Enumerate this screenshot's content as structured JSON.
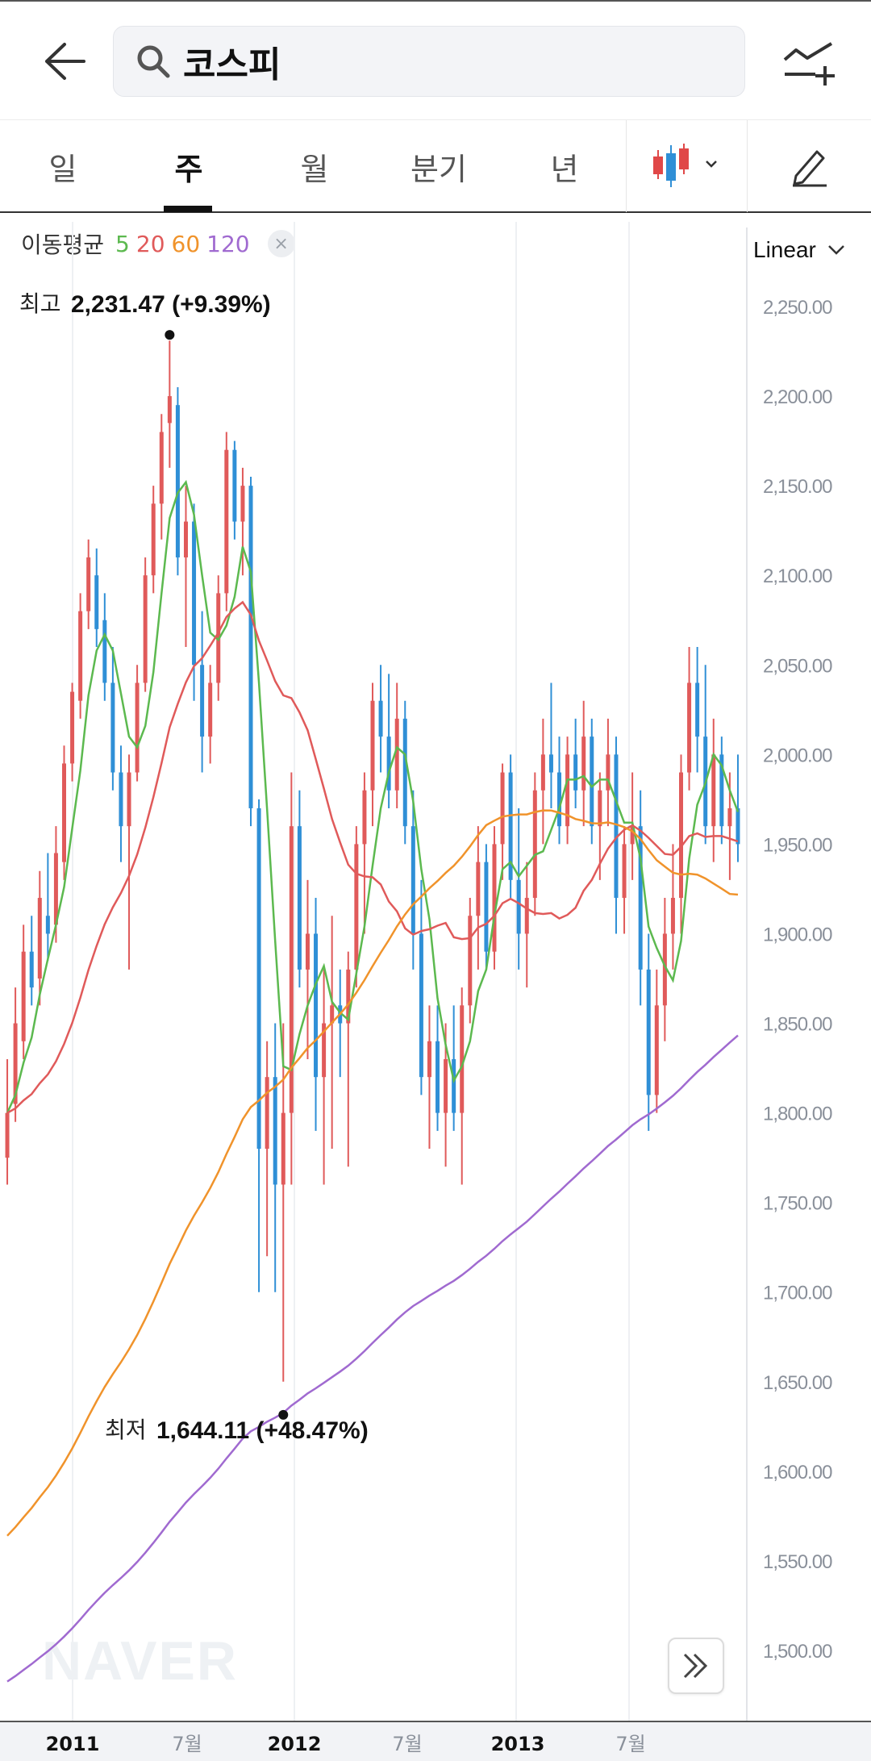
{
  "header": {
    "search_value": "코스피",
    "back_icon": "arrow-left-icon",
    "search_icon": "search-icon",
    "compare_icon": "chart-compare-add-icon"
  },
  "tabs": [
    {
      "label": "일",
      "active": false
    },
    {
      "label": "주",
      "active": true
    },
    {
      "label": "월",
      "active": false
    },
    {
      "label": "분기",
      "active": false
    },
    {
      "label": "년",
      "active": false
    }
  ],
  "toolbar": {
    "chart_type_icon": "candlestick-icon",
    "edit_icon": "pencil-icon"
  },
  "ma_legend": {
    "label": "이동평균",
    "periods": [
      "5",
      "20",
      "60",
      "120"
    ],
    "colors": {
      "5": "#5cb94f",
      "20": "#e05a5a",
      "60": "#f0932b",
      "120": "#a06ad0"
    },
    "close": "×"
  },
  "scale": {
    "label": "Linear"
  },
  "annotations": {
    "high": {
      "label": "최고",
      "value": "2,231.47 (+9.39%)"
    },
    "low": {
      "label": "최저",
      "value": "1,644.11 (+48.47%)"
    }
  },
  "watermark": "NAVER",
  "colors": {
    "up": "#e05a5a",
    "down": "#2f8fd6",
    "grid": "#eef0f3"
  },
  "chart_data": {
    "type": "candlestick",
    "title": "코스피",
    "y_ticks": [
      "2,250.00",
      "2,200.00",
      "2,150.00",
      "2,100.00",
      "2,050.00",
      "2,000.00",
      "1,950.00",
      "1,900.00",
      "1,850.00",
      "1,800.00",
      "1,750.00",
      "1,700.00",
      "1,650.00",
      "1,600.00",
      "1,550.00",
      "1,500.00"
    ],
    "x_ticks": [
      "2011",
      "7월",
      "2012",
      "7월",
      "2013",
      "7월"
    ],
    "ylim": [
      1470,
      2265
    ],
    "high_marker": 2231.47,
    "low_marker": 1644.11,
    "candles": [
      [
        1775,
        1830,
        1760,
        1800
      ],
      [
        1805,
        1870,
        1795,
        1850
      ],
      [
        1840,
        1905,
        1830,
        1890
      ],
      [
        1890,
        1910,
        1860,
        1870
      ],
      [
        1875,
        1935,
        1860,
        1920
      ],
      [
        1910,
        1945,
        1885,
        1900
      ],
      [
        1905,
        1960,
        1895,
        1945
      ],
      [
        1940,
        2005,
        1930,
        1995
      ],
      [
        1995,
        2040,
        1985,
        2035
      ],
      [
        2030,
        2090,
        2020,
        2080
      ],
      [
        2080,
        2120,
        2070,
        2110
      ],
      [
        2100,
        2115,
        2060,
        2070
      ],
      [
        2075,
        2090,
        2030,
        2040
      ],
      [
        2040,
        2060,
        1980,
        1990
      ],
      [
        1990,
        2005,
        1940,
        1960
      ],
      [
        1960,
        2000,
        1880,
        1990
      ],
      [
        1990,
        2050,
        1985,
        2040
      ],
      [
        2040,
        2110,
        2035,
        2100
      ],
      [
        2100,
        2150,
        2090,
        2140
      ],
      [
        2140,
        2190,
        2120,
        2180
      ],
      [
        2185,
        2231,
        2160,
        2200
      ],
      [
        2195,
        2205,
        2100,
        2110
      ],
      [
        2110,
        2150,
        2060,
        2130
      ],
      [
        2130,
        2140,
        2030,
        2050
      ],
      [
        2050,
        2080,
        1990,
        2010
      ],
      [
        2010,
        2050,
        1995,
        2040
      ],
      [
        2040,
        2100,
        2030,
        2090
      ],
      [
        2090,
        2180,
        2080,
        2170
      ],
      [
        2170,
        2175,
        2120,
        2130
      ],
      [
        2130,
        2160,
        2100,
        2150
      ],
      [
        2150,
        2155,
        1960,
        1970
      ],
      [
        1970,
        1975,
        1700,
        1780
      ],
      [
        1780,
        1840,
        1720,
        1820
      ],
      [
        1820,
        1850,
        1700,
        1760
      ],
      [
        1760,
        1850,
        1650,
        1800
      ],
      [
        1800,
        1990,
        1760,
        1960
      ],
      [
        1960,
        1980,
        1870,
        1880
      ],
      [
        1880,
        1930,
        1830,
        1900
      ],
      [
        1900,
        1920,
        1790,
        1820
      ],
      [
        1820,
        1880,
        1760,
        1850
      ],
      [
        1850,
        1910,
        1780,
        1860
      ],
      [
        1860,
        1880,
        1820,
        1850
      ],
      [
        1850,
        1890,
        1770,
        1880
      ],
      [
        1880,
        1960,
        1870,
        1950
      ],
      [
        1950,
        1990,
        1900,
        1980
      ],
      [
        1980,
        2040,
        1960,
        2030
      ],
      [
        2030,
        2050,
        1990,
        2010
      ],
      [
        2010,
        2045,
        1970,
        1980
      ],
      [
        1980,
        2040,
        1970,
        2020
      ],
      [
        2020,
        2030,
        1950,
        1960
      ],
      [
        1960,
        1980,
        1880,
        1900
      ],
      [
        1900,
        1930,
        1810,
        1820
      ],
      [
        1820,
        1860,
        1780,
        1840
      ],
      [
        1840,
        1860,
        1790,
        1800
      ],
      [
        1800,
        1850,
        1770,
        1830
      ],
      [
        1830,
        1860,
        1790,
        1800
      ],
      [
        1800,
        1870,
        1760,
        1860
      ],
      [
        1860,
        1920,
        1850,
        1910
      ],
      [
        1910,
        1960,
        1880,
        1940
      ],
      [
        1940,
        1950,
        1880,
        1890
      ],
      [
        1890,
        1960,
        1880,
        1950
      ],
      [
        1950,
        1995,
        1930,
        1990
      ],
      [
        1990,
        2000,
        1920,
        1930
      ],
      [
        1930,
        1970,
        1880,
        1900
      ],
      [
        1900,
        1940,
        1870,
        1920
      ],
      [
        1920,
        1990,
        1910,
        1980
      ],
      [
        1980,
        2020,
        1950,
        2000
      ],
      [
        2000,
        2040,
        1970,
        1990
      ],
      [
        1990,
        2010,
        1950,
        1960
      ],
      [
        1960,
        2010,
        1950,
        2000
      ],
      [
        2000,
        2020,
        1970,
        1980
      ],
      [
        1980,
        2030,
        1960,
        2010
      ],
      [
        2010,
        2020,
        1950,
        1960
      ],
      [
        1960,
        1990,
        1930,
        1980
      ],
      [
        1980,
        2020,
        1960,
        2000
      ],
      [
        2000,
        2010,
        1900,
        1920
      ],
      [
        1920,
        1960,
        1900,
        1950
      ],
      [
        1950,
        1990,
        1930,
        1960
      ],
      [
        1960,
        1980,
        1860,
        1880
      ],
      [
        1880,
        1900,
        1790,
        1810
      ],
      [
        1810,
        1880,
        1800,
        1860
      ],
      [
        1860,
        1920,
        1840,
        1900
      ],
      [
        1900,
        1950,
        1880,
        1920
      ],
      [
        1920,
        2000,
        1900,
        1990
      ],
      [
        1990,
        2060,
        1980,
        2040
      ],
      [
        2040,
        2060,
        1990,
        2010
      ],
      [
        2010,
        2050,
        1950,
        1960
      ],
      [
        1960,
        2020,
        1940,
        2000
      ],
      [
        2000,
        2010,
        1950,
        1960
      ],
      [
        1960,
        1990,
        1930,
        1970
      ],
      [
        1970,
        2000,
        1940,
        1950
      ]
    ]
  }
}
